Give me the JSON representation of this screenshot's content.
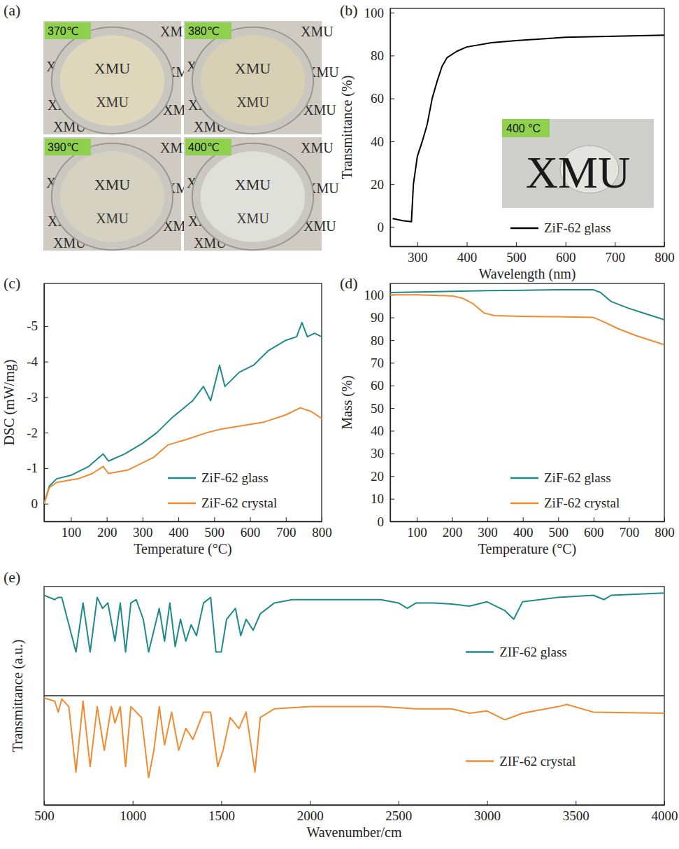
{
  "chart_data": [
    {
      "type": "image",
      "panel_label": "(a)",
      "photos": [
        {
          "label": "370℃",
          "text": "XMU"
        },
        {
          "label": "380℃",
          "text": "XMU"
        },
        {
          "label": "390℃",
          "text": "XMU"
        },
        {
          "label": "400℃",
          "text": "XMU"
        }
      ]
    },
    {
      "type": "line",
      "panel_label": "(b)",
      "x_label": "Wavelength (nm)",
      "y_label": "Transmittance (%)",
      "xlim": [
        245,
        800
      ],
      "xticks": [
        300,
        400,
        500,
        600,
        700,
        800
      ],
      "ylim": [
        -9,
        102
      ],
      "yticks": [
        0,
        20,
        40,
        60,
        80,
        100
      ],
      "legend": "lower right",
      "inset": {
        "label": "400 °C",
        "text": "XMU"
      },
      "series": [
        {
          "name": "ZiF-62 glass",
          "color": "#000000",
          "x": [
            250,
            270,
            288,
            292,
            300,
            310,
            320,
            330,
            340,
            350,
            360,
            380,
            400,
            450,
            500,
            600,
            700,
            800
          ],
          "values": [
            4,
            3,
            2.5,
            20,
            33,
            40,
            48,
            60,
            68,
            75,
            79,
            82,
            84,
            86,
            87,
            88.5,
            89,
            89.5
          ]
        }
      ]
    },
    {
      "type": "line",
      "panel_label": "(c)",
      "x_label": "Temperature (°C)",
      "y_label": "DSC (mW/mg)",
      "xlim": [
        25,
        800
      ],
      "xticks": [
        100,
        200,
        300,
        400,
        500,
        600,
        700,
        800
      ],
      "ylim": [
        0.5,
        -6.2
      ],
      "yticks": [
        0,
        -1,
        -2,
        -3,
        -4,
        -5
      ],
      "legend": "lower right",
      "series": [
        {
          "name": "ZiF-62 glass",
          "color": "#1f8a8a",
          "x": [
            25,
            40,
            60,
            100,
            150,
            190,
            205,
            250,
            300,
            340,
            380,
            440,
            470,
            490,
            515,
            530,
            570,
            610,
            650,
            700,
            730,
            745,
            760,
            780,
            800
          ],
          "values": [
            0,
            -0.5,
            -0.7,
            -0.8,
            -1.05,
            -1.4,
            -1.2,
            -1.4,
            -1.7,
            -2.0,
            -2.4,
            -2.9,
            -3.3,
            -2.9,
            -3.9,
            -3.3,
            -3.7,
            -3.9,
            -4.3,
            -4.6,
            -4.7,
            -5.1,
            -4.7,
            -4.8,
            -4.7
          ]
        },
        {
          "name": "ZiF-62 crystal",
          "color": "#f28a30",
          "x": [
            25,
            40,
            60,
            120,
            160,
            190,
            205,
            260,
            330,
            370,
            420,
            480,
            520,
            580,
            640,
            700,
            740,
            770,
            800
          ],
          "values": [
            0,
            -0.45,
            -0.6,
            -0.7,
            -0.85,
            -1.05,
            -0.85,
            -0.95,
            -1.3,
            -1.65,
            -1.8,
            -2.0,
            -2.1,
            -2.2,
            -2.3,
            -2.5,
            -2.7,
            -2.6,
            -2.4
          ]
        }
      ]
    },
    {
      "type": "line",
      "panel_label": "(d)",
      "x_label": "Temperature (°C)",
      "y_label": "Mass (%)",
      "xlim": [
        25,
        800
      ],
      "xticks": [
        100,
        200,
        300,
        400,
        500,
        600,
        700,
        800
      ],
      "ylim": [
        0,
        105
      ],
      "yticks": [
        0,
        10,
        20,
        30,
        40,
        50,
        60,
        70,
        80,
        90,
        100
      ],
      "legend": "lower right",
      "series": [
        {
          "name": "ZiF-62 glass",
          "color": "#1f8a8a",
          "x": [
            25,
            100,
            200,
            300,
            400,
            500,
            600,
            620,
            650,
            700,
            750,
            800
          ],
          "values": [
            101,
            101.2,
            101.5,
            101.8,
            102,
            102.2,
            102.2,
            101,
            97,
            94,
            91.5,
            89
          ]
        },
        {
          "name": "ZiF-62 crystal",
          "color": "#f28a30",
          "x": [
            25,
            100,
            200,
            230,
            260,
            290,
            320,
            400,
            500,
            600,
            630,
            670,
            720,
            760,
            800
          ],
          "values": [
            100,
            100,
            99.5,
            98.5,
            96,
            92,
            90.8,
            90.5,
            90.3,
            90,
            88,
            85,
            82,
            80,
            78
          ]
        }
      ]
    },
    {
      "type": "line",
      "panel_label": "(e)",
      "x_label": "Wavenumber/cm",
      "y_label": "Transmittance (a.u.)",
      "xlim": [
        500,
        4000
      ],
      "xticks": [
        500,
        1000,
        1500,
        2000,
        2500,
        3000,
        3500,
        4000
      ],
      "ylim": [
        0,
        1
      ],
      "tick_labels": "x",
      "stacked": true,
      "legend": "right",
      "series": [
        {
          "name": "ZIF-62 glass",
          "color": "#1f8a8a",
          "x": [
            500,
            560,
            580,
            600,
            680,
            720,
            760,
            800,
            830,
            860,
            900,
            930,
            960,
            990,
            1020,
            1060,
            1090,
            1120,
            1150,
            1180,
            1210,
            1240,
            1270,
            1300,
            1330,
            1360,
            1400,
            1440,
            1470,
            1500,
            1530,
            1580,
            1610,
            1640,
            1680,
            1720,
            1800,
            1900,
            2000,
            2200,
            2400,
            2500,
            2550,
            2600,
            2700,
            2800,
            2900,
            3000,
            3100,
            3150,
            3200,
            3400,
            3600,
            3660,
            3700,
            4000
          ],
          "values": [
            0.92,
            0.88,
            0.9,
            0.9,
            0.4,
            0.85,
            0.4,
            0.9,
            0.8,
            0.85,
            0.5,
            0.85,
            0.4,
            0.85,
            0.88,
            0.7,
            0.4,
            0.6,
            0.8,
            0.5,
            0.85,
            0.45,
            0.7,
            0.5,
            0.65,
            0.55,
            0.85,
            0.9,
            0.4,
            0.4,
            0.7,
            0.8,
            0.55,
            0.7,
            0.6,
            0.75,
            0.85,
            0.88,
            0.88,
            0.88,
            0.88,
            0.85,
            0.8,
            0.85,
            0.85,
            0.84,
            0.82,
            0.86,
            0.78,
            0.7,
            0.86,
            0.9,
            0.92,
            0.88,
            0.92,
            0.94
          ]
        },
        {
          "name": "ZIF-62 crystal",
          "color": "#f28a30",
          "x": [
            500,
            560,
            580,
            600,
            640,
            680,
            720,
            760,
            800,
            840,
            880,
            900,
            930,
            960,
            990,
            1050,
            1090,
            1120,
            1150,
            1180,
            1220,
            1260,
            1300,
            1340,
            1400,
            1440,
            1480,
            1510,
            1550,
            1600,
            1640,
            1690,
            1720,
            1800,
            2000,
            2400,
            2600,
            2800,
            2900,
            3000,
            3100,
            3200,
            3400,
            3450,
            3600,
            4000
          ],
          "values": [
            0.98,
            0.95,
            0.85,
            0.97,
            0.9,
            0.3,
            0.95,
            0.35,
            0.9,
            0.5,
            0.9,
            0.75,
            0.9,
            0.35,
            0.9,
            0.8,
            0.25,
            0.5,
            0.9,
            0.55,
            0.85,
            0.5,
            0.7,
            0.6,
            0.85,
            0.85,
            0.35,
            0.5,
            0.8,
            0.7,
            0.85,
            0.3,
            0.8,
            0.88,
            0.9,
            0.9,
            0.88,
            0.88,
            0.84,
            0.86,
            0.78,
            0.84,
            0.9,
            0.92,
            0.85,
            0.84
          ]
        }
      ]
    }
  ]
}
